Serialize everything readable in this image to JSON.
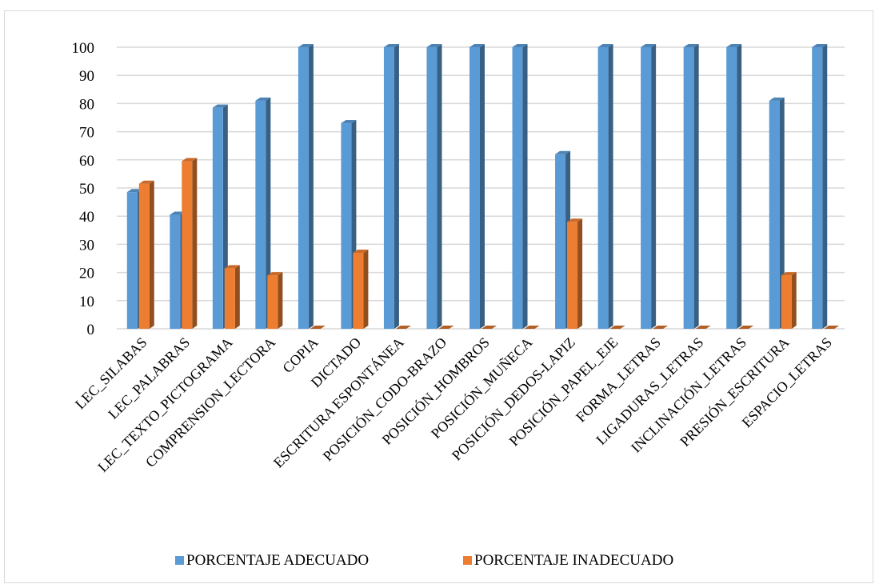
{
  "chart_data": {
    "type": "bar",
    "title": "",
    "xlabel": "",
    "ylabel": "",
    "ylim": [
      0,
      100
    ],
    "y_ticks": [
      0,
      10,
      20,
      30,
      40,
      50,
      60,
      70,
      80,
      90,
      100
    ],
    "grid": true,
    "legend_position": "bottom",
    "style": "3d-clustered-columns",
    "categories": [
      "LEC_SILABAS",
      "LEC_PALABRAS",
      "LEC_TEXTO_PICTOGRAMA",
      "COMPRENSION_LECTORA",
      "COPIA",
      "DICTADO",
      "ESCRITURA ESPONTÁNEA",
      "POSICIÓN_CODO-BRAZO",
      "POSICIÓN_HOMBROS",
      "POSICIÓN_MUÑECA",
      "POSICIÓN_DEDOS-LAPIZ",
      "POSICIÓN_PAPEL_EJE",
      "FORMA_LETRAS",
      "LIGADURAS_LETRAS",
      "INCLINACIÓN_LETRAS",
      "PRESIÓN_ESCRITURA",
      "ESPACIO_LETRAS"
    ],
    "series": [
      {
        "name": "PORCENTAJE ADECUADO",
        "color": "#5b9bd5",
        "values": [
          48.5,
          40.5,
          78.5,
          81,
          100,
          73,
          100,
          100,
          100,
          100,
          62,
          100,
          100,
          100,
          100,
          81,
          100
        ]
      },
      {
        "name": "PORCENTAJE INADECUADO",
        "color": "#ed7d31",
        "values": [
          51.5,
          59.5,
          21.5,
          19,
          0,
          27,
          0,
          0,
          0,
          0,
          38,
          0,
          0,
          0,
          0,
          19,
          0
        ]
      }
    ]
  }
}
